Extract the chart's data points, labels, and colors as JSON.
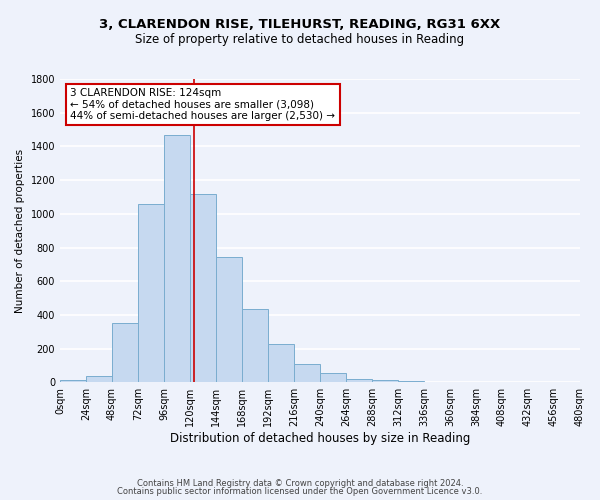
{
  "title": "3, CLARENDON RISE, TILEHURST, READING, RG31 6XX",
  "subtitle": "Size of property relative to detached houses in Reading",
  "xlabel": "Distribution of detached houses by size in Reading",
  "ylabel": "Number of detached properties",
  "bin_edges": [
    0,
    24,
    48,
    72,
    96,
    120,
    144,
    168,
    192,
    216,
    240,
    264,
    288,
    312,
    336,
    360,
    384,
    408,
    432,
    456,
    480
  ],
  "counts": [
    15,
    35,
    350,
    1060,
    1470,
    1120,
    745,
    435,
    225,
    110,
    55,
    20,
    15,
    5,
    3,
    1,
    0,
    0,
    0,
    0
  ],
  "bar_color": "#c6d9f0",
  "bar_edge_color": "#7aadcf",
  "property_size": 124,
  "vline_color": "#cc0000",
  "annotation_text": "3 CLARENDON RISE: 124sqm\n← 54% of detached houses are smaller (3,098)\n44% of semi-detached houses are larger (2,530) →",
  "annotation_box_color": "#ffffff",
  "annotation_box_edge_color": "#cc0000",
  "ylim": [
    0,
    1800
  ],
  "yticks": [
    0,
    200,
    400,
    600,
    800,
    1000,
    1200,
    1400,
    1600,
    1800
  ],
  "footer_line1": "Contains HM Land Registry data © Crown copyright and database right 2024.",
  "footer_line2": "Contains public sector information licensed under the Open Government Licence v3.0.",
  "bg_color": "#eef2fb",
  "grid_color": "#ffffff",
  "title_fontsize": 9.5,
  "subtitle_fontsize": 8.5,
  "xlabel_fontsize": 8.5,
  "ylabel_fontsize": 7.5,
  "tick_fontsize": 7,
  "footer_fontsize": 6,
  "annotation_fontsize": 7.5
}
